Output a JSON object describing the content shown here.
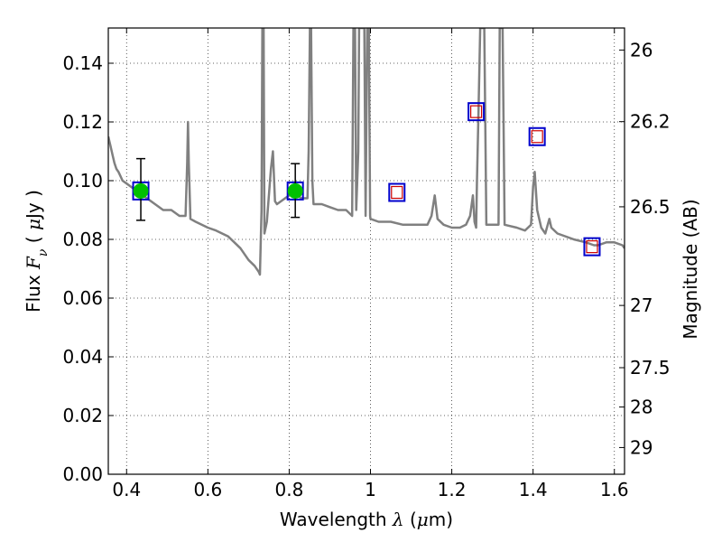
{
  "chart_data": {
    "type": "line",
    "title": "",
    "xlabel": {
      "prefix": "Wavelength ",
      "symbol": "λ",
      "unit_open": " (",
      "unit_mu": "μ",
      "unit_rest": "m)"
    },
    "ylabel": {
      "prefix": "Flux ",
      "symbol": "F",
      "subscript": "ν",
      "unit_open": " ( ",
      "unit_mu": "μ",
      "unit_rest": "Jy )"
    },
    "y2label": "Magnitude (AB)",
    "xlim": [
      0.355,
      1.625
    ],
    "ylim": [
      0.0,
      0.152
    ],
    "grid": true,
    "x_ticks": [
      {
        "value": 0.4,
        "label": "0.4"
      },
      {
        "value": 0.6,
        "label": "0.6"
      },
      {
        "value": 0.8,
        "label": "0.8"
      },
      {
        "value": 1.0,
        "label": "1"
      },
      {
        "value": 1.2,
        "label": "1.2"
      },
      {
        "value": 1.4,
        "label": "1.4"
      },
      {
        "value": 1.6,
        "label": "1.6"
      }
    ],
    "y_ticks": [
      {
        "value": 0.0,
        "label": "0.00"
      },
      {
        "value": 0.02,
        "label": "0.02"
      },
      {
        "value": 0.04,
        "label": "0.04"
      },
      {
        "value": 0.06,
        "label": "0.06"
      },
      {
        "value": 0.08,
        "label": "0.08"
      },
      {
        "value": 0.1,
        "label": "0.10"
      },
      {
        "value": 0.12,
        "label": "0.12"
      },
      {
        "value": 0.14,
        "label": "0.14"
      }
    ],
    "y2_ticks": [
      {
        "flux": 0.1445,
        "label": "26"
      },
      {
        "flux": 0.1201,
        "label": "26.2"
      },
      {
        "flux": 0.0911,
        "label": "26.5"
      },
      {
        "flux": 0.0575,
        "label": "27"
      },
      {
        "flux": 0.0363,
        "label": "27.5"
      },
      {
        "flux": 0.0229,
        "label": "28"
      },
      {
        "flux": 0.0091,
        "label": "29"
      }
    ],
    "series": [
      {
        "role": "spectrum",
        "color": "#808080",
        "points": [
          [
            0.355,
            0.115
          ],
          [
            0.36,
            0.112
          ],
          [
            0.365,
            0.109
          ],
          [
            0.37,
            0.106
          ],
          [
            0.375,
            0.104
          ],
          [
            0.38,
            0.103
          ],
          [
            0.39,
            0.1
          ],
          [
            0.4,
            0.099
          ],
          [
            0.41,
            0.098
          ],
          [
            0.42,
            0.097
          ],
          [
            0.43,
            0.096
          ],
          [
            0.44,
            0.095
          ],
          [
            0.45,
            0.094
          ],
          [
            0.46,
            0.093
          ],
          [
            0.47,
            0.092
          ],
          [
            0.48,
            0.091
          ],
          [
            0.49,
            0.09
          ],
          [
            0.5,
            0.09
          ],
          [
            0.51,
            0.09
          ],
          [
            0.52,
            0.089
          ],
          [
            0.53,
            0.088
          ],
          [
            0.54,
            0.088
          ],
          [
            0.545,
            0.088
          ],
          [
            0.549,
            0.106
          ],
          [
            0.551,
            0.12
          ],
          [
            0.553,
            0.106
          ],
          [
            0.557,
            0.087
          ],
          [
            0.57,
            0.086
          ],
          [
            0.6,
            0.084
          ],
          [
            0.62,
            0.083
          ],
          [
            0.65,
            0.081
          ],
          [
            0.68,
            0.077
          ],
          [
            0.7,
            0.073
          ],
          [
            0.715,
            0.071
          ],
          [
            0.725,
            0.069
          ],
          [
            0.728,
            0.068
          ],
          [
            0.732,
            0.09
          ],
          [
            0.734,
            0.152
          ],
          [
            0.737,
            0.152
          ],
          [
            0.739,
            0.082
          ],
          [
            0.745,
            0.086
          ],
          [
            0.755,
            0.104
          ],
          [
            0.76,
            0.11
          ],
          [
            0.765,
            0.093
          ],
          [
            0.77,
            0.092
          ],
          [
            0.79,
            0.094
          ],
          [
            0.8,
            0.095
          ],
          [
            0.81,
            0.096
          ],
          [
            0.82,
            0.095
          ],
          [
            0.83,
            0.094
          ],
          [
            0.845,
            0.094
          ],
          [
            0.848,
            0.11
          ],
          [
            0.851,
            0.152
          ],
          [
            0.854,
            0.152
          ],
          [
            0.857,
            0.1
          ],
          [
            0.86,
            0.092
          ],
          [
            0.88,
            0.092
          ],
          [
            0.9,
            0.091
          ],
          [
            0.92,
            0.09
          ],
          [
            0.94,
            0.09
          ],
          [
            0.955,
            0.088
          ],
          [
            0.958,
            0.152
          ],
          [
            0.962,
            0.152
          ],
          [
            0.965,
            0.09
          ],
          [
            0.97,
            0.11
          ],
          [
            0.972,
            0.152
          ],
          [
            0.985,
            0.152
          ],
          [
            0.988,
            0.088
          ],
          [
            0.992,
            0.152
          ],
          [
            0.996,
            0.152
          ],
          [
            0.999,
            0.088
          ],
          [
            1.0,
            0.087
          ],
          [
            1.02,
            0.086
          ],
          [
            1.05,
            0.086
          ],
          [
            1.08,
            0.085
          ],
          [
            1.1,
            0.085
          ],
          [
            1.12,
            0.085
          ],
          [
            1.14,
            0.085
          ],
          [
            1.15,
            0.088
          ],
          [
            1.158,
            0.095
          ],
          [
            1.165,
            0.087
          ],
          [
            1.18,
            0.085
          ],
          [
            1.2,
            0.084
          ],
          [
            1.22,
            0.084
          ],
          [
            1.235,
            0.085
          ],
          [
            1.245,
            0.088
          ],
          [
            1.252,
            0.095
          ],
          [
            1.256,
            0.086
          ],
          [
            1.26,
            0.084
          ],
          [
            1.262,
            0.1
          ],
          [
            1.266,
            0.125
          ],
          [
            1.27,
            0.152
          ],
          [
            1.28,
            0.152
          ],
          [
            1.285,
            0.085
          ],
          [
            1.3,
            0.085
          ],
          [
            1.315,
            0.085
          ],
          [
            1.318,
            0.152
          ],
          [
            1.325,
            0.152
          ],
          [
            1.33,
            0.085
          ],
          [
            1.36,
            0.084
          ],
          [
            1.38,
            0.083
          ],
          [
            1.395,
            0.085
          ],
          [
            1.4,
            0.098
          ],
          [
            1.404,
            0.103
          ],
          [
            1.41,
            0.09
          ],
          [
            1.42,
            0.084
          ],
          [
            1.43,
            0.082
          ],
          [
            1.44,
            0.087
          ],
          [
            1.445,
            0.084
          ],
          [
            1.46,
            0.082
          ],
          [
            1.5,
            0.08
          ],
          [
            1.53,
            0.079
          ],
          [
            1.55,
            0.078
          ],
          [
            1.56,
            0.078
          ],
          [
            1.58,
            0.079
          ],
          [
            1.6,
            0.079
          ],
          [
            1.62,
            0.078
          ],
          [
            1.625,
            0.077
          ]
        ]
      }
    ],
    "observed_points": [
      {
        "x": 0.435,
        "y": 0.0965,
        "yerr": [
          0.0865,
          0.1075
        ]
      },
      {
        "x": 0.815,
        "y": 0.0965,
        "yerr": [
          0.0875,
          0.1058
        ]
      }
    ],
    "observed_color": "#00c000",
    "model_boxes": [
      {
        "x": 0.435,
        "y": 0.0965
      },
      {
        "x": 0.815,
        "y": 0.0965
      },
      {
        "x": 1.065,
        "y": 0.096
      },
      {
        "x": 1.26,
        "y": 0.1235
      },
      {
        "x": 1.41,
        "y": 0.115
      },
      {
        "x": 1.545,
        "y": 0.0775
      }
    ],
    "model_box_color": "#0000cc",
    "model_inner_boxes": [
      {
        "x": 1.065,
        "y": 0.096
      },
      {
        "x": 1.26,
        "y": 0.1235
      },
      {
        "x": 1.41,
        "y": 0.115
      },
      {
        "x": 1.545,
        "y": 0.0775
      }
    ],
    "model_inner_color": "#cc0000"
  }
}
